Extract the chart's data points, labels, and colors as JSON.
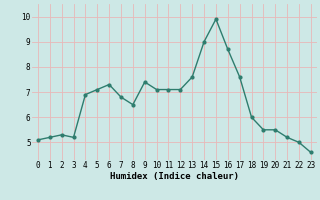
{
  "x": [
    0,
    1,
    2,
    3,
    4,
    5,
    6,
    7,
    8,
    9,
    10,
    11,
    12,
    13,
    14,
    15,
    16,
    17,
    18,
    19,
    20,
    21,
    22,
    23
  ],
  "y": [
    5.1,
    5.2,
    5.3,
    5.2,
    6.9,
    7.1,
    7.3,
    6.8,
    6.5,
    7.4,
    7.1,
    7.1,
    7.1,
    7.6,
    9.0,
    9.9,
    8.7,
    7.6,
    6.0,
    5.5,
    5.5,
    5.2,
    5.0,
    4.6
  ],
  "line_color": "#2e7d6e",
  "marker": "o",
  "markersize": 2.0,
  "linewidth": 1.0,
  "bg_color": "#cde8e6",
  "grid_color": "#e8b8b8",
  "xlabel": "Humidex (Indice chaleur)",
  "xlabel_fontsize": 6.5,
  "tick_fontsize": 5.5,
  "xlim": [
    -0.5,
    23.5
  ],
  "ylim": [
    4.3,
    10.5
  ],
  "yticks": [
    5,
    6,
    7,
    8,
    9,
    10
  ],
  "xticks": [
    0,
    1,
    2,
    3,
    4,
    5,
    6,
    7,
    8,
    9,
    10,
    11,
    12,
    13,
    14,
    15,
    16,
    17,
    18,
    19,
    20,
    21,
    22,
    23
  ]
}
